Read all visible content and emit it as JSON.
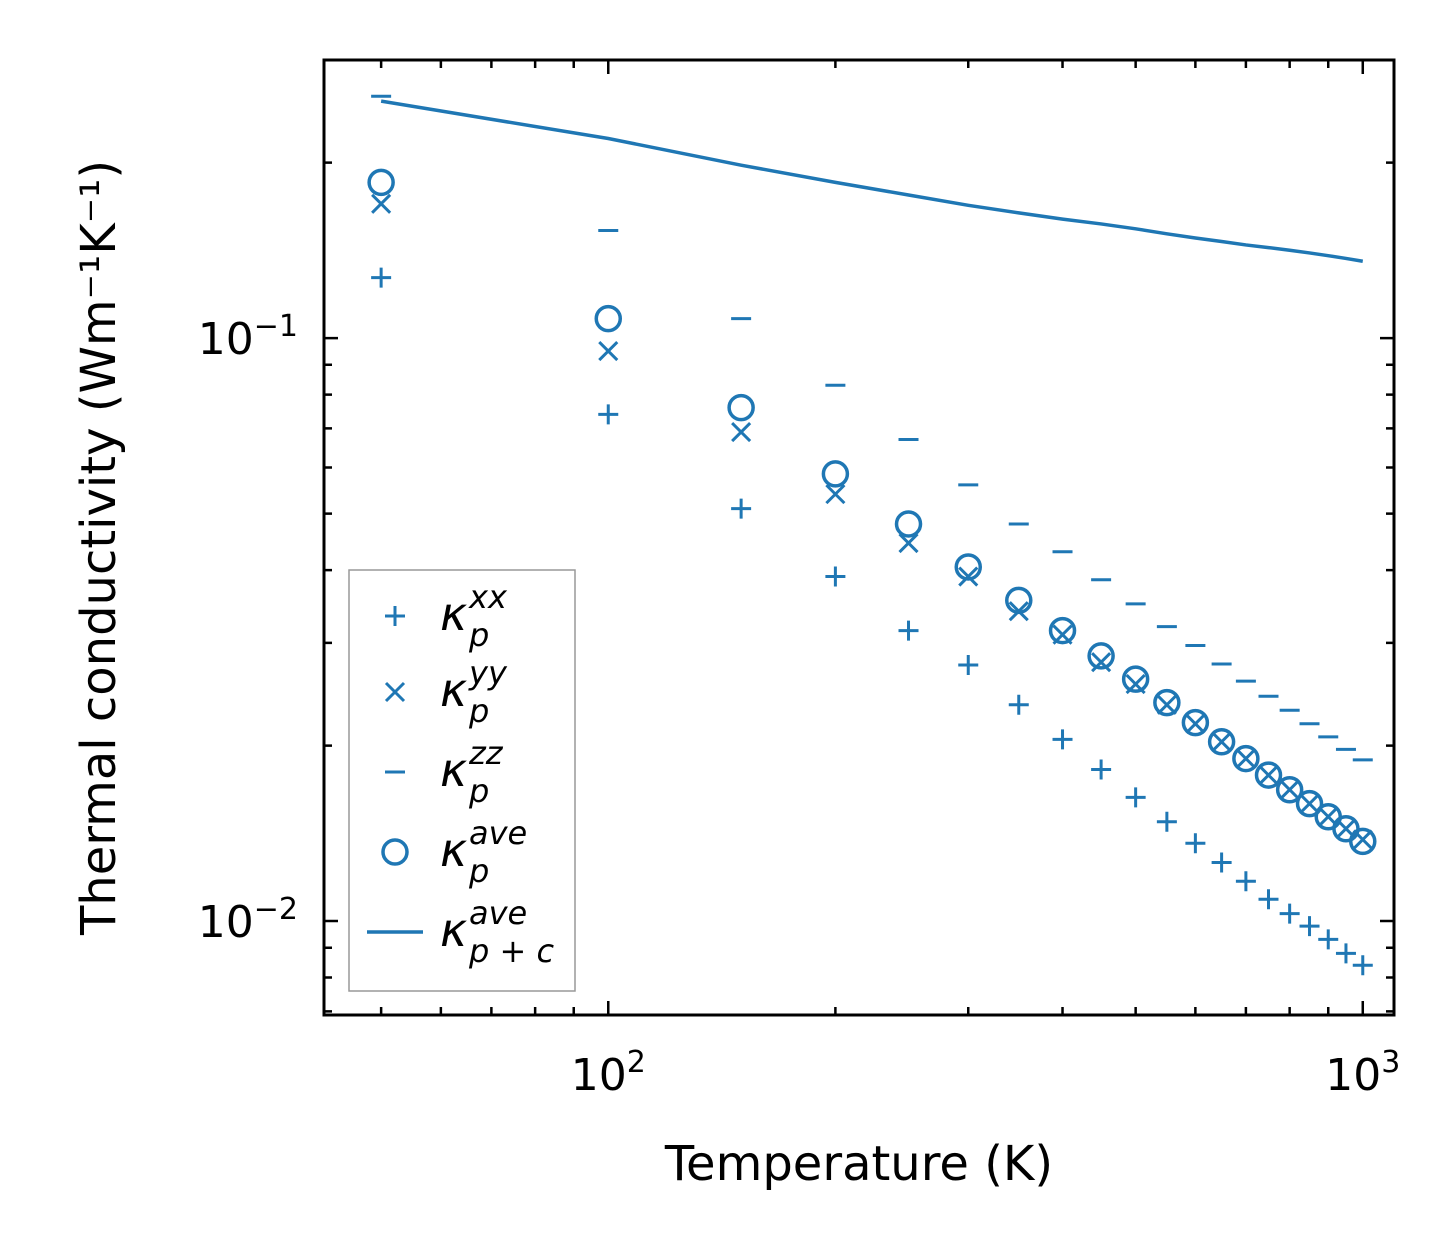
{
  "chart_data": {
    "type": "scatter",
    "title": "",
    "xlabel": "Temperature (K)",
    "ylabel": "Thermal conductivity (Wm⁻¹K⁻¹)",
    "xscale": "log",
    "yscale": "log",
    "xlim": [
      42,
      1100
    ],
    "ylim": [
      0.0069,
      0.3
    ],
    "x_ticks": [
      {
        "value": 100,
        "base": "10",
        "exp": "2"
      },
      {
        "value": 1000,
        "base": "10",
        "exp": "3"
      }
    ],
    "y_ticks": [
      {
        "value": 0.1,
        "base": "10",
        "exp": "−1"
      },
      {
        "value": 0.01,
        "base": "10",
        "exp": "−2"
      }
    ],
    "grid": false,
    "legend_position": "lower-left",
    "color": "#1f77b4",
    "x": [
      50,
      100,
      150,
      200,
      250,
      300,
      350,
      400,
      450,
      500,
      550,
      600,
      650,
      700,
      750,
      800,
      850,
      900,
      950,
      1000
    ],
    "series": [
      {
        "name": "kxx",
        "label_base": "κ",
        "label_sub": "p",
        "label_sup": "xx",
        "marker": "plus",
        "values": [
          0.127,
          0.074,
          0.051,
          0.039,
          0.0315,
          0.0275,
          0.0235,
          0.0205,
          0.0182,
          0.0163,
          0.0148,
          0.0136,
          0.0126,
          0.0117,
          0.0109,
          0.0103,
          0.0098,
          0.0093,
          0.0088,
          0.0084
        ]
      },
      {
        "name": "kyy",
        "label_base": "κ",
        "label_sub": "p",
        "label_sup": "yy",
        "marker": "x",
        "values": [
          0.17,
          0.095,
          0.069,
          0.054,
          0.0445,
          0.039,
          0.034,
          0.031,
          0.0278,
          0.0255,
          0.0235,
          0.0218,
          0.0203,
          0.019,
          0.0178,
          0.0168,
          0.0159,
          0.0151,
          0.0144,
          0.0138
        ]
      },
      {
        "name": "kzz",
        "label_base": "κ",
        "label_sub": "p",
        "label_sup": "zz",
        "marker": "dash",
        "values": [
          0.26,
          0.153,
          0.108,
          0.083,
          0.067,
          0.056,
          0.048,
          0.043,
          0.0385,
          0.035,
          0.032,
          0.0297,
          0.0276,
          0.0258,
          0.0243,
          0.023,
          0.0218,
          0.0207,
          0.0197,
          0.0189
        ]
      },
      {
        "name": "kave",
        "label_base": "κ",
        "label_sub": "p",
        "label_sup": "ave",
        "marker": "circle",
        "values": [
          0.185,
          0.108,
          0.076,
          0.0585,
          0.048,
          0.0405,
          0.0355,
          0.0315,
          0.0285,
          0.026,
          0.0237,
          0.0219,
          0.0203,
          0.019,
          0.0178,
          0.0168,
          0.0159,
          0.0151,
          0.0144,
          0.0137
        ]
      },
      {
        "name": "kpc",
        "label_base": "κ",
        "label_sub": "p + c",
        "label_sup": "ave",
        "marker": "line",
        "values": [
          0.255,
          0.22,
          0.198,
          0.185,
          0.176,
          0.169,
          0.164,
          0.16,
          0.157,
          0.154,
          0.151,
          0.1485,
          0.1465,
          0.1445,
          0.143,
          0.1415,
          0.14,
          0.1385,
          0.137,
          0.1355
        ]
      }
    ]
  }
}
